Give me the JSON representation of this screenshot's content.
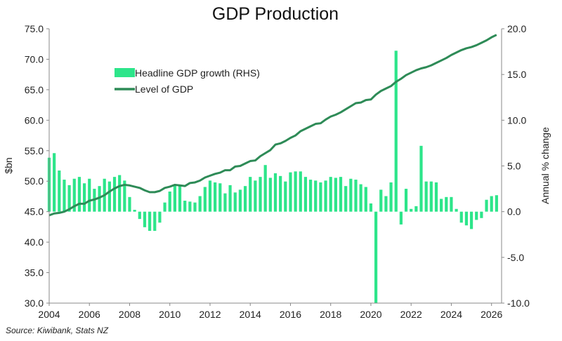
{
  "title": "GDP Production",
  "source": "Source: Kiwibank, Stats NZ",
  "chart_data": {
    "type": "bar",
    "title": "GDP Production",
    "xlabel": "",
    "x_ticks": [
      "2004",
      "2006",
      "2008",
      "2010",
      "2012",
      "2014",
      "2016",
      "2018",
      "2020",
      "2022",
      "2024",
      "2026"
    ],
    "xlim": [
      2004,
      2026.5
    ],
    "left_axis": {
      "label": "$bn",
      "ylim": [
        30,
        75
      ],
      "ticks": [
        "30.0",
        "35.0",
        "40.0",
        "45.0",
        "50.0",
        "55.0",
        "60.0",
        "65.0",
        "70.0",
        "75.0"
      ]
    },
    "right_axis": {
      "label": "Annual % change",
      "ylim": [
        -10,
        20
      ],
      "ticks": [
        "-10.0",
        "-5.0",
        "0.0",
        "5.0",
        "10.0",
        "15.0",
        "20.0"
      ]
    },
    "legend_position": "top-left",
    "grid": false,
    "colors": {
      "bars": "#2de58a",
      "line": "#2e8b57"
    },
    "series": [
      {
        "name": "Headline GDP growth (RHS)",
        "type": "bar",
        "axis": "right",
        "x": [
          2004.0,
          2004.25,
          2004.5,
          2004.75,
          2005.0,
          2005.25,
          2005.5,
          2005.75,
          2006.0,
          2006.25,
          2006.5,
          2006.75,
          2007.0,
          2007.25,
          2007.5,
          2007.75,
          2008.0,
          2008.25,
          2008.5,
          2008.75,
          2009.0,
          2009.25,
          2009.5,
          2009.75,
          2010.0,
          2010.25,
          2010.5,
          2010.75,
          2011.0,
          2011.25,
          2011.5,
          2011.75,
          2012.0,
          2012.25,
          2012.5,
          2012.75,
          2013.0,
          2013.25,
          2013.5,
          2013.75,
          2014.0,
          2014.25,
          2014.5,
          2014.75,
          2015.0,
          2015.25,
          2015.5,
          2015.75,
          2016.0,
          2016.25,
          2016.5,
          2016.75,
          2017.0,
          2017.25,
          2017.5,
          2017.75,
          2018.0,
          2018.25,
          2018.5,
          2018.75,
          2019.0,
          2019.25,
          2019.5,
          2019.75,
          2020.0,
          2020.25,
          2020.5,
          2020.75,
          2021.0,
          2021.25,
          2021.5,
          2021.75,
          2022.0,
          2022.25,
          2022.5,
          2022.75,
          2023.0,
          2023.25,
          2023.5,
          2023.75,
          2024.0,
          2024.25,
          2024.5,
          2024.75,
          2025.0,
          2025.25,
          2025.5,
          2025.75,
          2026.0,
          2026.25
        ],
        "values": [
          5.9,
          6.4,
          4.5,
          3.5,
          2.9,
          3.6,
          3.8,
          3.1,
          3.6,
          2.5,
          2.8,
          3.6,
          3.3,
          3.8,
          4.0,
          3.4,
          1.6,
          0.2,
          -0.8,
          -1.7,
          -2.1,
          -2.1,
          -1.2,
          1.0,
          2.2,
          2.9,
          2.9,
          1.2,
          1.1,
          1.0,
          1.7,
          2.7,
          3.4,
          3.2,
          3.1,
          2.0,
          2.9,
          2.1,
          2.4,
          2.8,
          3.8,
          3.4,
          3.8,
          5.1,
          3.7,
          4.2,
          3.9,
          3.3,
          4.3,
          4.4,
          4.4,
          3.8,
          3.5,
          3.4,
          3.2,
          3.4,
          3.8,
          3.7,
          3.8,
          2.8,
          3.6,
          3.5,
          3.0,
          2.7,
          0.9,
          -10.0,
          2.4,
          1.7,
          3.2,
          17.6,
          -1.4,
          2.5,
          0.3,
          0.6,
          7.2,
          3.3,
          3.3,
          3.2,
          1.4,
          1.6,
          1.6,
          0.3,
          -1.2,
          -1.5,
          -1.9,
          -0.9,
          -0.7,
          1.3,
          1.7,
          1.8
        ],
        "ylim": [
          -10,
          20
        ]
      },
      {
        "name": "Level of GDP",
        "type": "line",
        "axis": "left",
        "x": [
          2004.0,
          2004.25,
          2004.5,
          2004.75,
          2005.0,
          2005.25,
          2005.5,
          2005.75,
          2006.0,
          2006.25,
          2006.5,
          2006.75,
          2007.0,
          2007.25,
          2007.5,
          2007.75,
          2008.0,
          2008.25,
          2008.5,
          2008.75,
          2009.0,
          2009.25,
          2009.5,
          2009.75,
          2010.0,
          2010.25,
          2010.5,
          2010.75,
          2011.0,
          2011.25,
          2011.5,
          2011.75,
          2012.0,
          2012.25,
          2012.5,
          2012.75,
          2013.0,
          2013.25,
          2013.5,
          2013.75,
          2014.0,
          2014.25,
          2014.5,
          2014.75,
          2015.0,
          2015.25,
          2015.5,
          2015.75,
          2016.0,
          2016.25,
          2016.5,
          2016.75,
          2017.0,
          2017.25,
          2017.5,
          2017.75,
          2018.0,
          2018.25,
          2018.5,
          2018.75,
          2019.0,
          2019.25,
          2019.5,
          2019.75,
          2020.0,
          2020.25,
          2020.5,
          2020.75,
          2021.0,
          2021.25,
          2021.5,
          2021.75,
          2022.0,
          2022.25,
          2022.5,
          2022.75,
          2023.0,
          2023.25,
          2023.5,
          2023.75,
          2024.0,
          2024.25,
          2024.5,
          2024.75,
          2025.0,
          2025.25,
          2025.5,
          2025.75,
          2026.0,
          2026.25
        ],
        "values": [
          44.4,
          44.7,
          44.8,
          45.0,
          45.4,
          45.9,
          46.3,
          46.3,
          46.8,
          47.0,
          47.3,
          47.7,
          48.3,
          48.8,
          49.2,
          49.4,
          49.3,
          49.1,
          48.9,
          48.5,
          48.2,
          48.2,
          48.4,
          48.9,
          49.1,
          49.4,
          49.3,
          49.2,
          49.7,
          49.8,
          50.1,
          50.6,
          50.9,
          51.2,
          51.4,
          51.8,
          51.8,
          52.4,
          52.5,
          52.9,
          53.3,
          53.4,
          54.1,
          54.6,
          55.1,
          56.0,
          56.2,
          56.6,
          57.1,
          57.5,
          58.2,
          58.6,
          59.0,
          59.4,
          59.5,
          60.1,
          60.6,
          60.9,
          61.3,
          61.8,
          62.3,
          62.8,
          62.9,
          63.3,
          63.4,
          64.2,
          64.8,
          65.2,
          65.6,
          66.3,
          66.8,
          67.4,
          67.8,
          68.2,
          68.5,
          68.7,
          69.0,
          69.4,
          69.8,
          70.2,
          70.7,
          71.1,
          71.5,
          71.8,
          72.0,
          72.3,
          72.7,
          73.1,
          73.6,
          74.0
        ]
      }
    ]
  }
}
